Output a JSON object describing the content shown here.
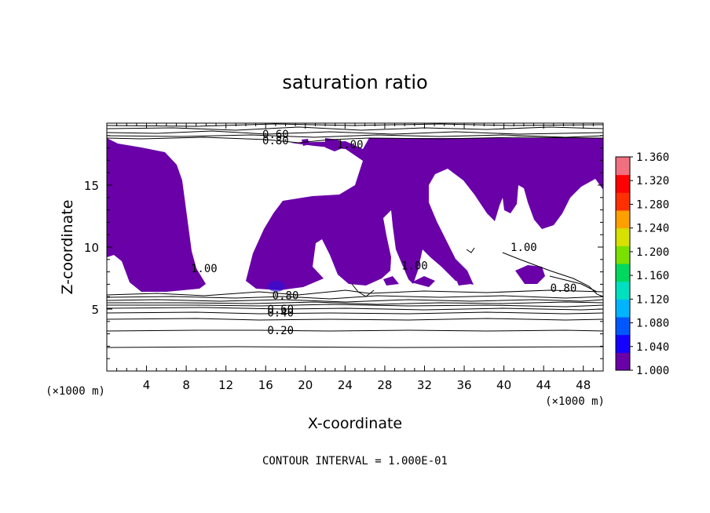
{
  "chart_data": {
    "type": "contour",
    "title": "saturation ratio",
    "xlabel": "X-coordinate",
    "ylabel": "Z-coordinate",
    "x_unit_label": "(×1000 m)",
    "y_unit_label": "(×1000 m)",
    "xlim": [
      0,
      50
    ],
    "ylim": [
      0,
      20
    ],
    "x_ticks": [
      4,
      8,
      12,
      16,
      20,
      24,
      28,
      32,
      36,
      40,
      44,
      48
    ],
    "y_ticks": [
      5,
      10,
      15
    ],
    "contour_interval_text": "CONTOUR INTERVAL = 1.000E-01",
    "contour_labels": [
      {
        "text": "0.60",
        "x": 17.0,
        "y": 19.1
      },
      {
        "text": "0.80",
        "x": 17.0,
        "y": 18.6
      },
      {
        "text": "1.00",
        "x": 24.5,
        "y": 18.3
      },
      {
        "text": "1.00",
        "x": 9.8,
        "y": 8.3
      },
      {
        "text": "1.00",
        "x": 31.0,
        "y": 8.5
      },
      {
        "text": "1.00",
        "x": 42.0,
        "y": 10.0
      },
      {
        "text": "0.80",
        "x": 46.0,
        "y": 6.7
      },
      {
        "text": "0.80",
        "x": 18.0,
        "y": 6.1
      },
      {
        "text": "0.60",
        "x": 17.5,
        "y": 5.0
      },
      {
        "text": "0.40",
        "x": 17.5,
        "y": 4.7
      },
      {
        "text": "0.20",
        "x": 17.5,
        "y": 3.3
      }
    ],
    "colorbar": {
      "ticks": [
        "1.360",
        "1.320",
        "1.280",
        "1.240",
        "1.200",
        "1.160",
        "1.120",
        "1.080",
        "1.040",
        "1.000"
      ],
      "colors": [
        "#6a00a8",
        "#1600ff",
        "#0057ff",
        "#00b4ff",
        "#00e0c0",
        "#00d860",
        "#7ae000",
        "#d8e000",
        "#ffa000",
        "#ff3000",
        "#ff0000",
        "#f07080"
      ]
    },
    "fill_color": "#6a00a8",
    "fill_threshold": 1.0
  }
}
